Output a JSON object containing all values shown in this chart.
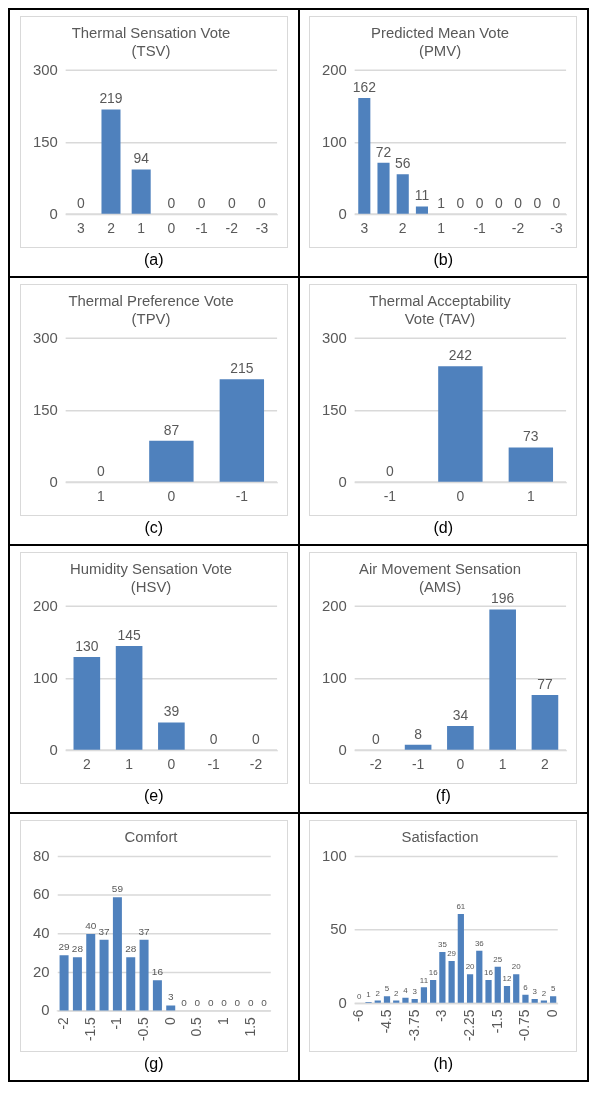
{
  "chart_data": [
    {
      "type": "bar",
      "title": "Thermal Sensation Vote (TSV)",
      "categories": [
        "3",
        "2",
        "1",
        "0",
        "-1",
        "-2",
        "-3"
      ],
      "values": [
        0,
        219,
        94,
        0,
        0,
        0,
        0
      ],
      "color": "#4f81bd",
      "ylim": [
        0,
        300
      ],
      "yticks": [
        0,
        150,
        300
      ],
      "grid": "y",
      "data_labels": true,
      "annotations": [
        "(a)"
      ]
    },
    {
      "type": "bar",
      "title": "Predicted Mean Vote (PMV)",
      "categories": [
        "3",
        null,
        "2",
        null,
        "1",
        null,
        "-1",
        null,
        "-2",
        null,
        "-3"
      ],
      "values": [
        162,
        72,
        56,
        11,
        1,
        0,
        0,
        0,
        0,
        0,
        0
      ],
      "color": "#4f81bd",
      "ylim": [
        0,
        200
      ],
      "yticks": [
        0,
        100,
        200
      ],
      "grid": "y",
      "data_labels": true,
      "annotations": [
        "(b)"
      ]
    },
    {
      "type": "bar",
      "title": "Thermal Preference Vote (TPV)",
      "categories": [
        "1",
        "0",
        "-1"
      ],
      "values": [
        0,
        87,
        215
      ],
      "color": "#4f81bd",
      "ylim": [
        0,
        300
      ],
      "yticks": [
        0,
        150,
        300
      ],
      "grid": "y",
      "data_labels": true,
      "annotations": [
        "(c)"
      ]
    },
    {
      "type": "bar",
      "title": "Thermal Acceptability Vote (TAV)",
      "categories": [
        "-1",
        "0",
        "1"
      ],
      "values": [
        0,
        242,
        73
      ],
      "color": "#4f81bd",
      "ylim": [
        0,
        300
      ],
      "yticks": [
        0,
        150,
        300
      ],
      "grid": "y",
      "data_labels": true,
      "annotations": [
        "(d)"
      ]
    },
    {
      "type": "bar",
      "title": "Humidity Sensation Vote (HSV)",
      "categories": [
        "2",
        "1",
        "0",
        "-1",
        "-2"
      ],
      "values": [
        130,
        145,
        39,
        0,
        0
      ],
      "color": "#4f81bd",
      "ylim": [
        0,
        200
      ],
      "yticks": [
        0,
        100,
        200
      ],
      "grid": "y",
      "data_labels": true,
      "annotations": [
        "(e)"
      ]
    },
    {
      "type": "bar",
      "title": "Air Movement Sensation (AMS)",
      "categories": [
        "-2",
        "-1",
        "0",
        "1",
        "2"
      ],
      "values": [
        0,
        8,
        34,
        196,
        77
      ],
      "color": "#4f81bd",
      "ylim": [
        0,
        200
      ],
      "yticks": [
        0,
        100,
        200
      ],
      "grid": "y",
      "data_labels": true,
      "annotations": [
        "(f)"
      ]
    },
    {
      "type": "bar",
      "title": "Comfort",
      "categories": [
        "-2",
        null,
        "-1.5",
        null,
        "-1",
        null,
        "-0.5",
        null,
        "0",
        null,
        "0.5",
        null,
        "1",
        null,
        "1.5",
        null
      ],
      "values": [
        29,
        28,
        40,
        37,
        59,
        28,
        37,
        16,
        3,
        0,
        0,
        0,
        0,
        0,
        0,
        0
      ],
      "color": "#4f81bd",
      "ylim": [
        0,
        80
      ],
      "yticks": [
        0,
        20,
        40,
        60,
        80
      ],
      "grid": "y",
      "data_labels": true,
      "annotations": [
        "(g)"
      ]
    },
    {
      "type": "bar",
      "title": "Satisfaction",
      "categories": [
        "-6",
        null,
        null,
        "-4.5",
        null,
        null,
        "-3.75",
        null,
        null,
        "-3",
        null,
        null,
        "-2.25",
        null,
        null,
        "-1.5",
        null,
        null,
        "-0.75",
        null,
        null,
        "0"
      ],
      "values": [
        0,
        1,
        2,
        5,
        2,
        4,
        3,
        11,
        16,
        35,
        29,
        61,
        20,
        36,
        16,
        25,
        12,
        20,
        6,
        3,
        2,
        5
      ],
      "color": "#4f81bd",
      "ylim": [
        0,
        100
      ],
      "yticks": [
        0,
        50,
        100
      ],
      "grid": "y",
      "data_labels": true,
      "annotations": [
        "(h)"
      ]
    }
  ]
}
